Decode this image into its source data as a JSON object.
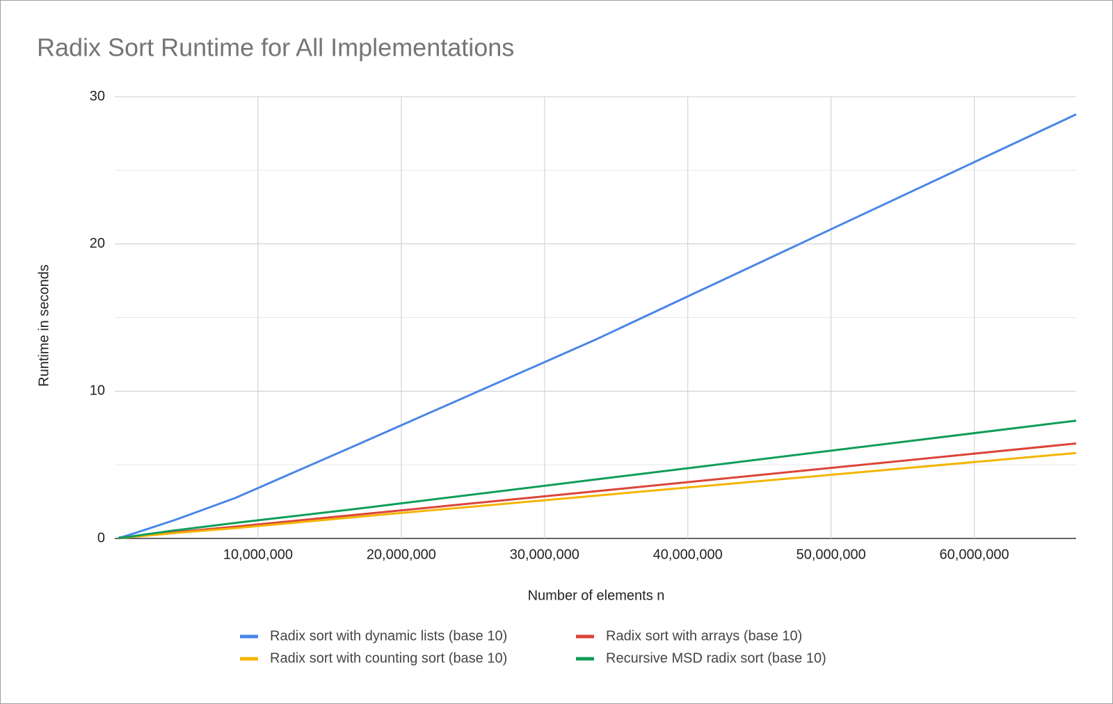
{
  "chart_data": {
    "type": "line",
    "title": "Radix Sort Runtime for All Implementations",
    "x_label": "Number of elements n",
    "y_label": "Runtime in seconds",
    "x": [
      262144,
      524288,
      1048576,
      2097152,
      4194304,
      8388608,
      16777216,
      33554432,
      67108864
    ],
    "series": [
      {
        "name": "Radix sort with dynamic lists (base 10)",
        "color": "#4a86e8",
        "values": [
          0.05,
          0.1,
          0.25,
          0.58,
          1.25,
          2.74,
          6.3,
          13.5,
          28.8
        ]
      },
      {
        "name": "Radix sort with arrays (base 10)",
        "color": "#db4437",
        "values": [
          0.02,
          0.04,
          0.1,
          0.2,
          0.42,
          0.8,
          1.6,
          3.2,
          6.45
        ]
      },
      {
        "name": "Radix sort with counting sort (base 10)",
        "color": "#f4b400",
        "values": [
          0.02,
          0.04,
          0.09,
          0.18,
          0.37,
          0.7,
          1.45,
          2.9,
          5.8
        ]
      },
      {
        "name": "Recursive MSD radix sort (base 10)",
        "color": "#0f9d58",
        "values": [
          0.02,
          0.05,
          0.12,
          0.27,
          0.55,
          1.05,
          2.0,
          4.0,
          8.0
        ]
      }
    ],
    "xlim": [
      0,
      67108864
    ],
    "xticks": [
      {
        "value": 10000000,
        "label": "10,000,000"
      },
      {
        "value": 20000000,
        "label": "20,000,000"
      },
      {
        "value": 30000000,
        "label": "30,000,000"
      },
      {
        "value": 40000000,
        "label": "40,000,000"
      },
      {
        "value": 50000000,
        "label": "50,000,000"
      },
      {
        "value": 60000000,
        "label": "60,000,000"
      }
    ],
    "ylim": [
      0,
      30
    ],
    "yticks": [
      0,
      10,
      20,
      30
    ],
    "minor_yticks": [
      5,
      15,
      25
    ],
    "grid": true,
    "legend": "bottom"
  }
}
